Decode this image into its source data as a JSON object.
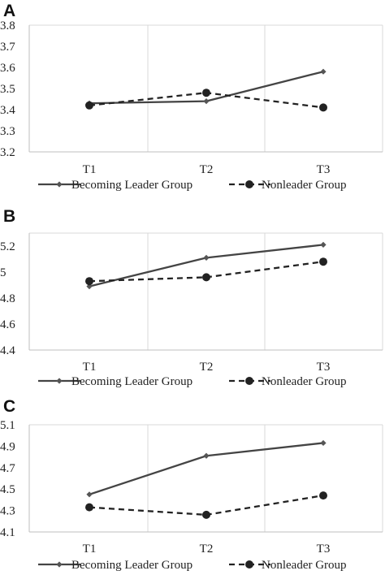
{
  "figure": {
    "legend": {
      "leader_label": "Becoming Leader Group",
      "nonleader_label": "Nonleader Group"
    }
  },
  "chart_data": [
    {
      "panel": "A",
      "type": "line",
      "categories": [
        "T1",
        "T2",
        "T3"
      ],
      "y_ticks": [
        "3.8",
        "3.7",
        "3.6",
        "3.5",
        "3.4",
        "3.3",
        "3.2"
      ],
      "ylim": [
        3.2,
        3.8
      ],
      "grid": "vertical",
      "legend": "bottom",
      "series": [
        {
          "name": "Becoming Leader Group",
          "values": [
            3.43,
            3.44,
            3.58
          ],
          "style": "solid",
          "marker": "diamond",
          "color": "#444444"
        },
        {
          "name": "Nonleader Group",
          "values": [
            3.42,
            3.48,
            3.41
          ],
          "style": "dashed",
          "marker": "circle",
          "color": "#222222"
        }
      ]
    },
    {
      "panel": "B",
      "type": "line",
      "categories": [
        "T1",
        "T2",
        "T3"
      ],
      "y_ticks": [
        "5.2",
        "5",
        "4.8",
        "4.6",
        "4.4"
      ],
      "ylim": [
        4.4,
        5.3
      ],
      "grid": "vertical",
      "legend": "bottom",
      "series": [
        {
          "name": "Becoming Leader Group",
          "values": [
            4.89,
            5.11,
            5.21
          ],
          "style": "solid",
          "marker": "diamond",
          "color": "#444444"
        },
        {
          "name": "Nonleader Group",
          "values": [
            4.93,
            4.96,
            5.08
          ],
          "style": "dashed",
          "marker": "circle",
          "color": "#222222"
        }
      ]
    },
    {
      "panel": "C",
      "type": "line",
      "categories": [
        "T1",
        "T2",
        "T3"
      ],
      "y_ticks": [
        "5.1",
        "4.9",
        "4.7",
        "4.5",
        "4.3",
        "4.1"
      ],
      "ylim": [
        4.1,
        5.1
      ],
      "grid": "vertical",
      "legend": "bottom",
      "series": [
        {
          "name": "Becoming Leader Group",
          "values": [
            4.45,
            4.81,
            4.93
          ],
          "style": "solid",
          "marker": "diamond",
          "color": "#444444"
        },
        {
          "name": "Nonleader Group",
          "values": [
            4.33,
            4.26,
            4.44
          ],
          "style": "dashed",
          "marker": "circle",
          "color": "#222222"
        }
      ]
    }
  ]
}
